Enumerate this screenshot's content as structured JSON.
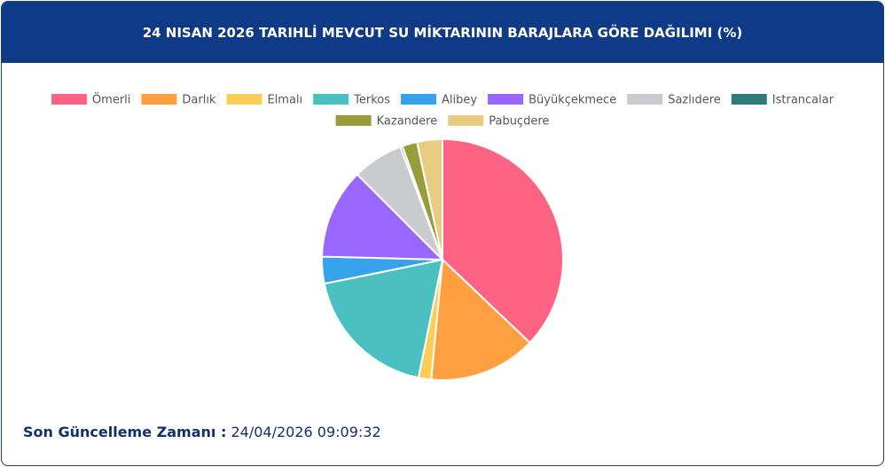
{
  "chart_data": {
    "type": "pie",
    "title": "24 NISAN 2026 TARIHLİ MEVCUT SU MİKTARININ BARAJLARA GÖRE DAĞILIMI (%)",
    "categories": [
      "Ömerli",
      "Darlık",
      "Elmalı",
      "Terkos",
      "Alibey",
      "Büyükçekmece",
      "Sazlıdere",
      "Istrancalar",
      "Kazandere",
      "Pabuçdere"
    ],
    "values": [
      37.1,
      14.4,
      1.7,
      18.6,
      3.6,
      12.1,
      6.8,
      0.3,
      2.0,
      3.4
    ],
    "colors": [
      "#ff6384",
      "#ff9f40",
      "#ffcd56",
      "#4bc0c0",
      "#36a2eb",
      "#9966ff",
      "#c9cbcf",
      "#2f7a7a",
      "#999c3b",
      "#e8cc82"
    ],
    "legend": "top"
  },
  "footer": {
    "label": "Son Güncelleme Zamanı :",
    "value": "24/04/2026 09:09:32"
  }
}
